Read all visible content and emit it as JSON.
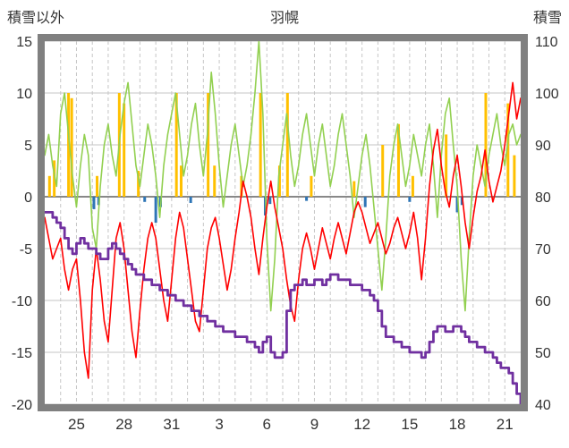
{
  "header": {
    "left_axis_title": "積雪以外",
    "title": "羽幌",
    "right_axis_title": "積雪"
  },
  "chart_data": {
    "type": "line",
    "title": "羽幌",
    "left_axis": {
      "title": "積雪以外",
      "min": -20,
      "max": 15,
      "ticks": [
        15,
        10,
        5,
        0,
        -5,
        -10,
        -15,
        -20
      ]
    },
    "right_axis": {
      "title": "積雪",
      "min": 40,
      "max": 110,
      "ticks": [
        110,
        100,
        90,
        80,
        70,
        60,
        50,
        40
      ]
    },
    "x_axis": {
      "range": [
        0,
        30
      ],
      "gridline_every": 1,
      "tick_positions": [
        2,
        5,
        8,
        11,
        14,
        17,
        20,
        23,
        26,
        29
      ],
      "tick_labels": [
        "25",
        "28",
        "31",
        "3",
        "6",
        "9",
        "12",
        "15",
        "18",
        "21"
      ]
    },
    "sample_step_days": 0.25,
    "series": [
      {
        "name": "green-line",
        "color": "#92D050",
        "axis": "left",
        "type": "line",
        "width": 1.6,
        "values": [
          4,
          6,
          3,
          1,
          8,
          10,
          6,
          2,
          -1,
          3,
          6,
          4,
          -3,
          -5,
          1,
          5,
          7,
          4,
          2,
          6,
          9,
          11,
          7,
          3,
          1,
          4,
          7,
          5,
          2,
          -2,
          3,
          6,
          8,
          10,
          6,
          2,
          4,
          7,
          9,
          5,
          2,
          6,
          12,
          8,
          3,
          -1,
          2,
          5,
          7,
          4,
          1,
          3,
          6,
          10,
          15,
          8,
          -4,
          -11,
          -6,
          2,
          5,
          8,
          4,
          1,
          3,
          6,
          8,
          5,
          2,
          5,
          7,
          4,
          1,
          3,
          6,
          8,
          5,
          2,
          -2,
          1,
          4,
          6,
          3,
          -1,
          -5,
          -9,
          -4,
          2,
          5,
          7,
          4,
          1,
          3,
          6,
          4,
          2,
          5,
          7,
          3,
          -2,
          4,
          8,
          9.5,
          5,
          1,
          -6,
          -11,
          -4,
          2,
          5,
          3,
          1,
          4,
          6,
          8,
          5,
          3,
          6,
          7,
          5,
          6
        ]
      },
      {
        "name": "red-line",
        "color": "#FF0000",
        "axis": "left",
        "type": "line",
        "width": 1.6,
        "values": [
          -2,
          -4,
          -6,
          -5,
          -4,
          -7,
          -9,
          -7,
          -6,
          -10,
          -15,
          -17.5,
          -9,
          -5,
          -8,
          -12,
          -14,
          -9,
          -4,
          -2.5,
          -5,
          -9,
          -13,
          -15.5,
          -11,
          -7,
          -4,
          -2.5,
          -4,
          -7,
          -10,
          -12,
          -8,
          -4,
          -1.5,
          -3,
          -6,
          -9,
          -12,
          -13,
          -9,
          -5,
          -3,
          -2,
          -4,
          -6.5,
          -9,
          -7,
          -4,
          -1.5,
          1.5,
          0,
          -2,
          -5,
          -7.5,
          -4,
          -1,
          1.5,
          -1,
          -3,
          -5,
          -8,
          -10.5,
          -12,
          -8,
          -5,
          -3.5,
          -5,
          -7,
          -5,
          -3,
          -4.5,
          -6,
          -4,
          -2.5,
          -4,
          -5.5,
          -3.5,
          -1.5,
          -0.5,
          -1.5,
          -3,
          -4.5,
          -3.5,
          -2.5,
          -4,
          -5.5,
          -4.5,
          -3,
          -2,
          -3.5,
          -5,
          -3.5,
          -1.5,
          -4,
          -8,
          -4,
          1,
          4.5,
          6.5,
          3,
          0.5,
          -1,
          2,
          4,
          1,
          -2.5,
          -5,
          -2,
          0.5,
          2,
          4.5,
          1.5,
          -0.5,
          1,
          2.5,
          5,
          8,
          11,
          7.5,
          9.5
        ]
      },
      {
        "name": "purple-line",
        "color": "#7030A0",
        "axis": "right",
        "type": "step",
        "width": 2.8,
        "values": [
          77,
          77,
          76,
          75,
          74,
          72,
          70,
          69,
          71,
          72,
          71,
          70,
          70,
          69,
          68,
          68,
          70,
          71,
          70,
          69,
          68,
          67,
          66,
          65,
          65,
          64,
          64,
          63,
          63,
          62,
          62,
          61,
          61,
          60,
          60,
          59,
          59,
          58,
          58,
          57,
          57,
          56,
          56,
          55,
          55,
          54,
          54,
          54,
          53,
          53,
          53,
          52,
          52,
          51,
          50,
          52,
          53,
          50,
          49,
          49,
          50,
          58,
          62,
          63,
          63,
          64,
          63,
          63,
          64,
          64,
          63,
          64,
          65,
          65,
          64,
          64,
          64,
          63,
          63,
          63,
          62,
          62,
          61,
          60,
          58,
          55,
          53,
          53,
          52,
          52,
          51,
          51,
          50,
          50,
          50,
          49,
          50,
          52,
          54,
          55,
          55,
          54,
          54,
          55,
          55,
          54,
          53,
          52,
          52,
          51,
          51,
          50,
          50,
          49,
          48,
          47,
          47,
          46,
          44,
          42,
          40
        ]
      }
    ],
    "bars": [
      {
        "name": "orange-bars",
        "color": "#FFC000",
        "axis": "left",
        "points": [
          [
            0.3,
            2
          ],
          [
            0.6,
            3.5
          ],
          [
            1.5,
            10
          ],
          [
            1.7,
            9.5
          ],
          [
            3.3,
            2
          ],
          [
            4.7,
            10
          ],
          [
            5.0,
            9
          ],
          [
            5.9,
            2.5
          ],
          [
            8.3,
            10
          ],
          [
            8.6,
            3
          ],
          [
            10.3,
            10
          ],
          [
            10.7,
            3
          ],
          [
            12.4,
            2
          ],
          [
            13.6,
            10
          ],
          [
            14.8,
            3
          ],
          [
            15.3,
            10
          ],
          [
            16.8,
            2
          ],
          [
            19.5,
            1.5
          ],
          [
            21.3,
            5
          ],
          [
            22.3,
            7
          ],
          [
            23.2,
            2
          ],
          [
            25.3,
            6
          ],
          [
            27.8,
            10
          ],
          [
            29.2,
            9
          ],
          [
            29.6,
            4
          ]
        ]
      },
      {
        "name": "blue-bars",
        "color": "#2E75B6",
        "axis": "left",
        "points": [
          [
            3.1,
            -1.2
          ],
          [
            3.4,
            -0.8
          ],
          [
            6.3,
            -0.5
          ],
          [
            7.0,
            -2.5
          ],
          [
            7.3,
            -1.0
          ],
          [
            9.2,
            -0.6
          ],
          [
            13.9,
            -1.8
          ],
          [
            14.2,
            -0.7
          ],
          [
            16.5,
            -0.4
          ],
          [
            20.2,
            -1.0
          ],
          [
            23.0,
            -0.5
          ],
          [
            26.0,
            -1.5
          ],
          [
            26.3,
            -0.8
          ]
        ]
      }
    ],
    "colors": {
      "grid": "#C6C6C6",
      "zero": "#404040",
      "frame": "#808080",
      "label": "#333333"
    }
  }
}
